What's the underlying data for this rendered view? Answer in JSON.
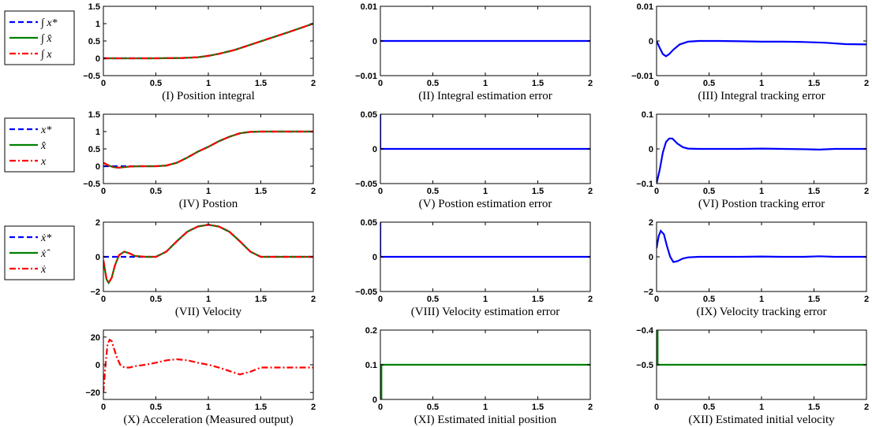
{
  "chart_data": [
    {
      "type": "line",
      "caption": "(I) Position integral",
      "xlim": [
        0,
        2
      ],
      "xticks": [
        "0",
        "0.5",
        "1",
        "1.5",
        "2"
      ],
      "ylim": [
        -0.5,
        1.5
      ],
      "yticks": [
        "-0.5",
        "0",
        "0.5",
        "1",
        "1.5"
      ],
      "legend": [
        "∫ x*",
        "∫ x̂",
        "∫ x"
      ],
      "series": [
        {
          "color": "#0000ff",
          "dash": "dash",
          "x": [
            0,
            0.25,
            0.5,
            0.75,
            0.9,
            1.0,
            1.1,
            1.25,
            1.5,
            1.75,
            2.0
          ],
          "y": [
            0,
            0,
            0,
            0.01,
            0.03,
            0.07,
            0.13,
            0.24,
            0.49,
            0.74,
            1.0
          ]
        },
        {
          "color": "#008000",
          "dash": "solid",
          "x": [
            0,
            0.25,
            0.5,
            0.75,
            0.9,
            1.0,
            1.1,
            1.25,
            1.5,
            1.75,
            2.0
          ],
          "y": [
            0,
            0,
            0,
            0.01,
            0.03,
            0.07,
            0.13,
            0.24,
            0.49,
            0.74,
            1.0
          ]
        },
        {
          "color": "#ff0000",
          "dash": "dashdot",
          "x": [
            0,
            0.25,
            0.5,
            0.75,
            0.9,
            1.0,
            1.1,
            1.25,
            1.5,
            1.75,
            2.0
          ],
          "y": [
            0,
            0,
            0,
            0.01,
            0.03,
            0.07,
            0.13,
            0.24,
            0.49,
            0.74,
            1.0
          ]
        }
      ]
    },
    {
      "type": "line",
      "caption": "(II) Integral estimation error",
      "xlim": [
        0,
        2
      ],
      "xticks": [
        "0",
        "0.5",
        "1",
        "1.5",
        "2"
      ],
      "ylim": [
        -0.01,
        0.01
      ],
      "yticks": [
        "-0.01",
        "0",
        "0.01"
      ],
      "series": [
        {
          "color": "#0000ff",
          "dash": "solid",
          "x": [
            0,
            2
          ],
          "y": [
            0,
            0
          ]
        }
      ]
    },
    {
      "type": "line",
      "caption": "(III) Integral tracking error",
      "xlim": [
        0,
        2
      ],
      "xticks": [
        "0",
        "0.5",
        "1",
        "1.5",
        "2"
      ],
      "ylim": [
        -0.01,
        0.01
      ],
      "yticks": [
        "-0.01",
        "0",
        "0.01"
      ],
      "series": [
        {
          "color": "#0000ff",
          "dash": "solid",
          "x": [
            0,
            0.03,
            0.06,
            0.09,
            0.12,
            0.16,
            0.22,
            0.3,
            0.4,
            0.6,
            0.8,
            1.0,
            1.2,
            1.4,
            1.6,
            1.8,
            2.0
          ],
          "y": [
            0,
            -0.002,
            -0.0038,
            -0.0044,
            -0.0038,
            -0.0025,
            -0.001,
            -0.0002,
            0,
            0,
            -0.0001,
            -0.0002,
            -0.0002,
            -0.0003,
            -0.0005,
            -0.0009,
            -0.001
          ]
        }
      ]
    },
    {
      "type": "line",
      "caption": "(IV) Postion",
      "xlim": [
        0,
        2
      ],
      "xticks": [
        "0",
        "0.5",
        "1",
        "1.5",
        "2"
      ],
      "ylim": [
        -0.5,
        1.5
      ],
      "yticks": [
        "-0.5",
        "0",
        "0.5",
        "1",
        "1.5"
      ],
      "legend": [
        "x*",
        "x̂",
        "x"
      ],
      "series": [
        {
          "color": "#0000ff",
          "dash": "dash",
          "x": [
            0,
            0.1,
            0.2,
            0.3,
            0.5,
            0.6,
            0.7,
            0.8,
            0.9,
            1.0,
            1.1,
            1.2,
            1.3,
            1.4,
            1.5,
            1.75,
            2.0
          ],
          "y": [
            0,
            0,
            0,
            0,
            0,
            0.02,
            0.1,
            0.25,
            0.42,
            0.56,
            0.72,
            0.85,
            0.95,
            0.99,
            1.0,
            1.0,
            1.0
          ]
        },
        {
          "color": "#008000",
          "dash": "solid",
          "x": [
            0,
            0.05,
            0.1,
            0.15,
            0.25,
            0.35,
            0.5,
            0.6,
            0.7,
            0.8,
            0.9,
            1.0,
            1.1,
            1.2,
            1.3,
            1.4,
            1.5,
            1.75,
            2.0
          ],
          "y": [
            0.1,
            0.02,
            -0.03,
            -0.04,
            -0.01,
            0,
            0,
            0.02,
            0.1,
            0.25,
            0.42,
            0.56,
            0.72,
            0.85,
            0.95,
            0.99,
            1.0,
            1.0,
            1.0
          ]
        },
        {
          "color": "#ff0000",
          "dash": "dashdot",
          "x": [
            0,
            0.05,
            0.1,
            0.15,
            0.25,
            0.35,
            0.5,
            0.6,
            0.7,
            0.8,
            0.9,
            1.0,
            1.1,
            1.2,
            1.3,
            1.4,
            1.5,
            1.75,
            2.0
          ],
          "y": [
            0.1,
            0.02,
            -0.03,
            -0.04,
            -0.01,
            0,
            0,
            0.02,
            0.1,
            0.25,
            0.42,
            0.56,
            0.72,
            0.85,
            0.95,
            0.99,
            1.0,
            1.0,
            1.0
          ]
        }
      ]
    },
    {
      "type": "line",
      "caption": "(V) Postion estimation error",
      "xlim": [
        0,
        2
      ],
      "xticks": [
        "0",
        "0.5",
        "1",
        "1.5",
        "2"
      ],
      "ylim": [
        -0.05,
        0.05
      ],
      "yticks": [
        "-0.05",
        "0",
        "0.05"
      ],
      "series": [
        {
          "color": "#0000ff",
          "dash": "solid",
          "x": [
            0,
            0,
            0.01,
            2
          ],
          "y": [
            0.05,
            0.0,
            0.0,
            0.0
          ]
        }
      ]
    },
    {
      "type": "line",
      "caption": "(VI) Postion tracking error",
      "xlim": [
        0,
        2
      ],
      "xticks": [
        "0",
        "0.5",
        "1",
        "1.5",
        "2"
      ],
      "ylim": [
        -0.1,
        0.1
      ],
      "yticks": [
        "-0.1",
        "0",
        "0.1"
      ],
      "series": [
        {
          "color": "#0000ff",
          "dash": "solid",
          "x": [
            0,
            0.03,
            0.06,
            0.09,
            0.12,
            0.15,
            0.2,
            0.25,
            0.3,
            0.4,
            0.6,
            0.8,
            1.0,
            1.2,
            1.4,
            1.55,
            1.7,
            2.0
          ],
          "y": [
            -0.1,
            -0.06,
            -0.01,
            0.02,
            0.03,
            0.03,
            0.015,
            0.005,
            0.001,
            0,
            0,
            0,
            0.001,
            0,
            -0.001,
            -0.002,
            0,
            0
          ]
        }
      ]
    },
    {
      "type": "line",
      "caption": "(VII) Velocity",
      "xlim": [
        0,
        2
      ],
      "xticks": [
        "0",
        "0.5",
        "1",
        "1.5",
        "2"
      ],
      "ylim": [
        -2,
        2
      ],
      "yticks": [
        "-2",
        "0",
        "2"
      ],
      "legend": [
        "ẋ*",
        "ẋ̂",
        "ẋ"
      ],
      "series": [
        {
          "color": "#0000ff",
          "dash": "dash",
          "x": [
            0,
            0.5,
            0.6,
            0.7,
            0.8,
            0.9,
            1.0,
            1.1,
            1.2,
            1.3,
            1.4,
            1.5,
            2.0
          ],
          "y": [
            0,
            0,
            0.3,
            0.9,
            1.45,
            1.75,
            1.85,
            1.75,
            1.45,
            0.9,
            0.3,
            0,
            0
          ]
        },
        {
          "color": "#008000",
          "dash": "solid",
          "x": [
            0,
            0.03,
            0.05,
            0.08,
            0.11,
            0.15,
            0.2,
            0.25,
            0.3,
            0.4,
            0.5,
            0.6,
            0.7,
            0.8,
            0.9,
            1.0,
            1.1,
            1.2,
            1.3,
            1.4,
            1.5,
            2.0
          ],
          "y": [
            -0.2,
            -1.3,
            -1.5,
            -1.2,
            -0.5,
            0.1,
            0.3,
            0.2,
            0.05,
            0,
            0,
            0.3,
            0.9,
            1.45,
            1.75,
            1.85,
            1.75,
            1.45,
            0.9,
            0.3,
            0,
            0
          ]
        },
        {
          "color": "#ff0000",
          "dash": "dashdot",
          "x": [
            0,
            0.03,
            0.05,
            0.08,
            0.11,
            0.15,
            0.2,
            0.25,
            0.3,
            0.4,
            0.5,
            0.6,
            0.7,
            0.8,
            0.9,
            1.0,
            1.1,
            1.2,
            1.3,
            1.4,
            1.5,
            2.0
          ],
          "y": [
            -0.2,
            -1.3,
            -1.5,
            -1.2,
            -0.5,
            0.1,
            0.3,
            0.2,
            0.05,
            0,
            0,
            0.3,
            0.9,
            1.45,
            1.75,
            1.85,
            1.75,
            1.45,
            0.9,
            0.3,
            0,
            0
          ]
        }
      ]
    },
    {
      "type": "line",
      "caption": "(VIII) Velocity estimation error",
      "xlim": [
        0,
        2
      ],
      "xticks": [
        "0",
        "0.5",
        "1",
        "1.5",
        "2"
      ],
      "ylim": [
        -0.05,
        0.05
      ],
      "yticks": [
        "-0.05",
        "0",
        "0.05"
      ],
      "series": [
        {
          "color": "#0000ff",
          "dash": "solid",
          "x": [
            0,
            0,
            0.01,
            2
          ],
          "y": [
            0.05,
            0.0,
            0.0,
            0.0
          ]
        }
      ]
    },
    {
      "type": "line",
      "caption": "(IX) Velocity tracking error",
      "xlim": [
        0,
        2
      ],
      "xticks": [
        "0",
        "0.5",
        "1",
        "1.5",
        "2"
      ],
      "ylim": [
        -2,
        2
      ],
      "yticks": [
        "-2",
        "0",
        "2"
      ],
      "series": [
        {
          "color": "#0000ff",
          "dash": "solid",
          "x": [
            0,
            0.02,
            0.04,
            0.07,
            0.1,
            0.13,
            0.16,
            0.2,
            0.25,
            0.3,
            0.4,
            0.6,
            0.8,
            1.0,
            1.2,
            1.4,
            1.55,
            1.7,
            2.0
          ],
          "y": [
            0.5,
            1.2,
            1.5,
            1.3,
            0.6,
            0.0,
            -0.3,
            -0.25,
            -0.1,
            -0.03,
            0,
            0,
            0,
            0.02,
            0,
            0,
            0.03,
            0,
            0
          ]
        }
      ]
    },
    {
      "type": "line",
      "caption": "(X) Acceleration (Measured output)",
      "xlim": [
        0,
        2
      ],
      "xticks": [
        "0",
        "0.5",
        "1",
        "1.5",
        "2"
      ],
      "ylim": [
        -25,
        25
      ],
      "yticks": [
        "-20",
        "0",
        "20"
      ],
      "series": [
        {
          "color": "#ff0000",
          "dash": "dashdot",
          "x": [
            0,
            0.02,
            0.04,
            0.06,
            0.08,
            0.1,
            0.13,
            0.16,
            0.2,
            0.25,
            0.3,
            0.4,
            0.5,
            0.6,
            0.7,
            0.8,
            0.9,
            1.0,
            1.1,
            1.2,
            1.3,
            1.4,
            1.5,
            1.6,
            2.0
          ],
          "y": [
            -20,
            0,
            15,
            18,
            17,
            12,
            5,
            0,
            -2,
            -2,
            -1,
            0,
            1.5,
            3.2,
            4.0,
            3.2,
            1.5,
            0,
            -2,
            -4.5,
            -7,
            -5,
            -2,
            -2,
            -2
          ]
        }
      ]
    },
    {
      "type": "line",
      "caption": "(XI) Estimated initial position",
      "xlim": [
        0,
        2
      ],
      "xticks": [
        "0",
        "0.5",
        "1",
        "1.5",
        "2"
      ],
      "ylim": [
        0,
        0.2
      ],
      "yticks": [
        "0",
        "0.1",
        "0.2"
      ],
      "series": [
        {
          "color": "#008000",
          "dash": "solid",
          "x": [
            0,
            0.01,
            0.01,
            2
          ],
          "y": [
            0,
            0,
            0.1,
            0.1
          ]
        }
      ]
    },
    {
      "type": "line",
      "caption": "(XII) Estimated initial velocity",
      "xlim": [
        0,
        2
      ],
      "xticks": [
        "0",
        "0.5",
        "1",
        "1.5",
        "2"
      ],
      "ylim": [
        -0.6,
        -0.4
      ],
      "yticks": [
        "-0.5",
        "-0.4"
      ],
      "series": [
        {
          "color": "#008000",
          "dash": "solid",
          "x": [
            0,
            0.01,
            0.01,
            2
          ],
          "y": [
            -0.4,
            -0.4,
            -0.5,
            -0.5
          ]
        }
      ]
    }
  ]
}
